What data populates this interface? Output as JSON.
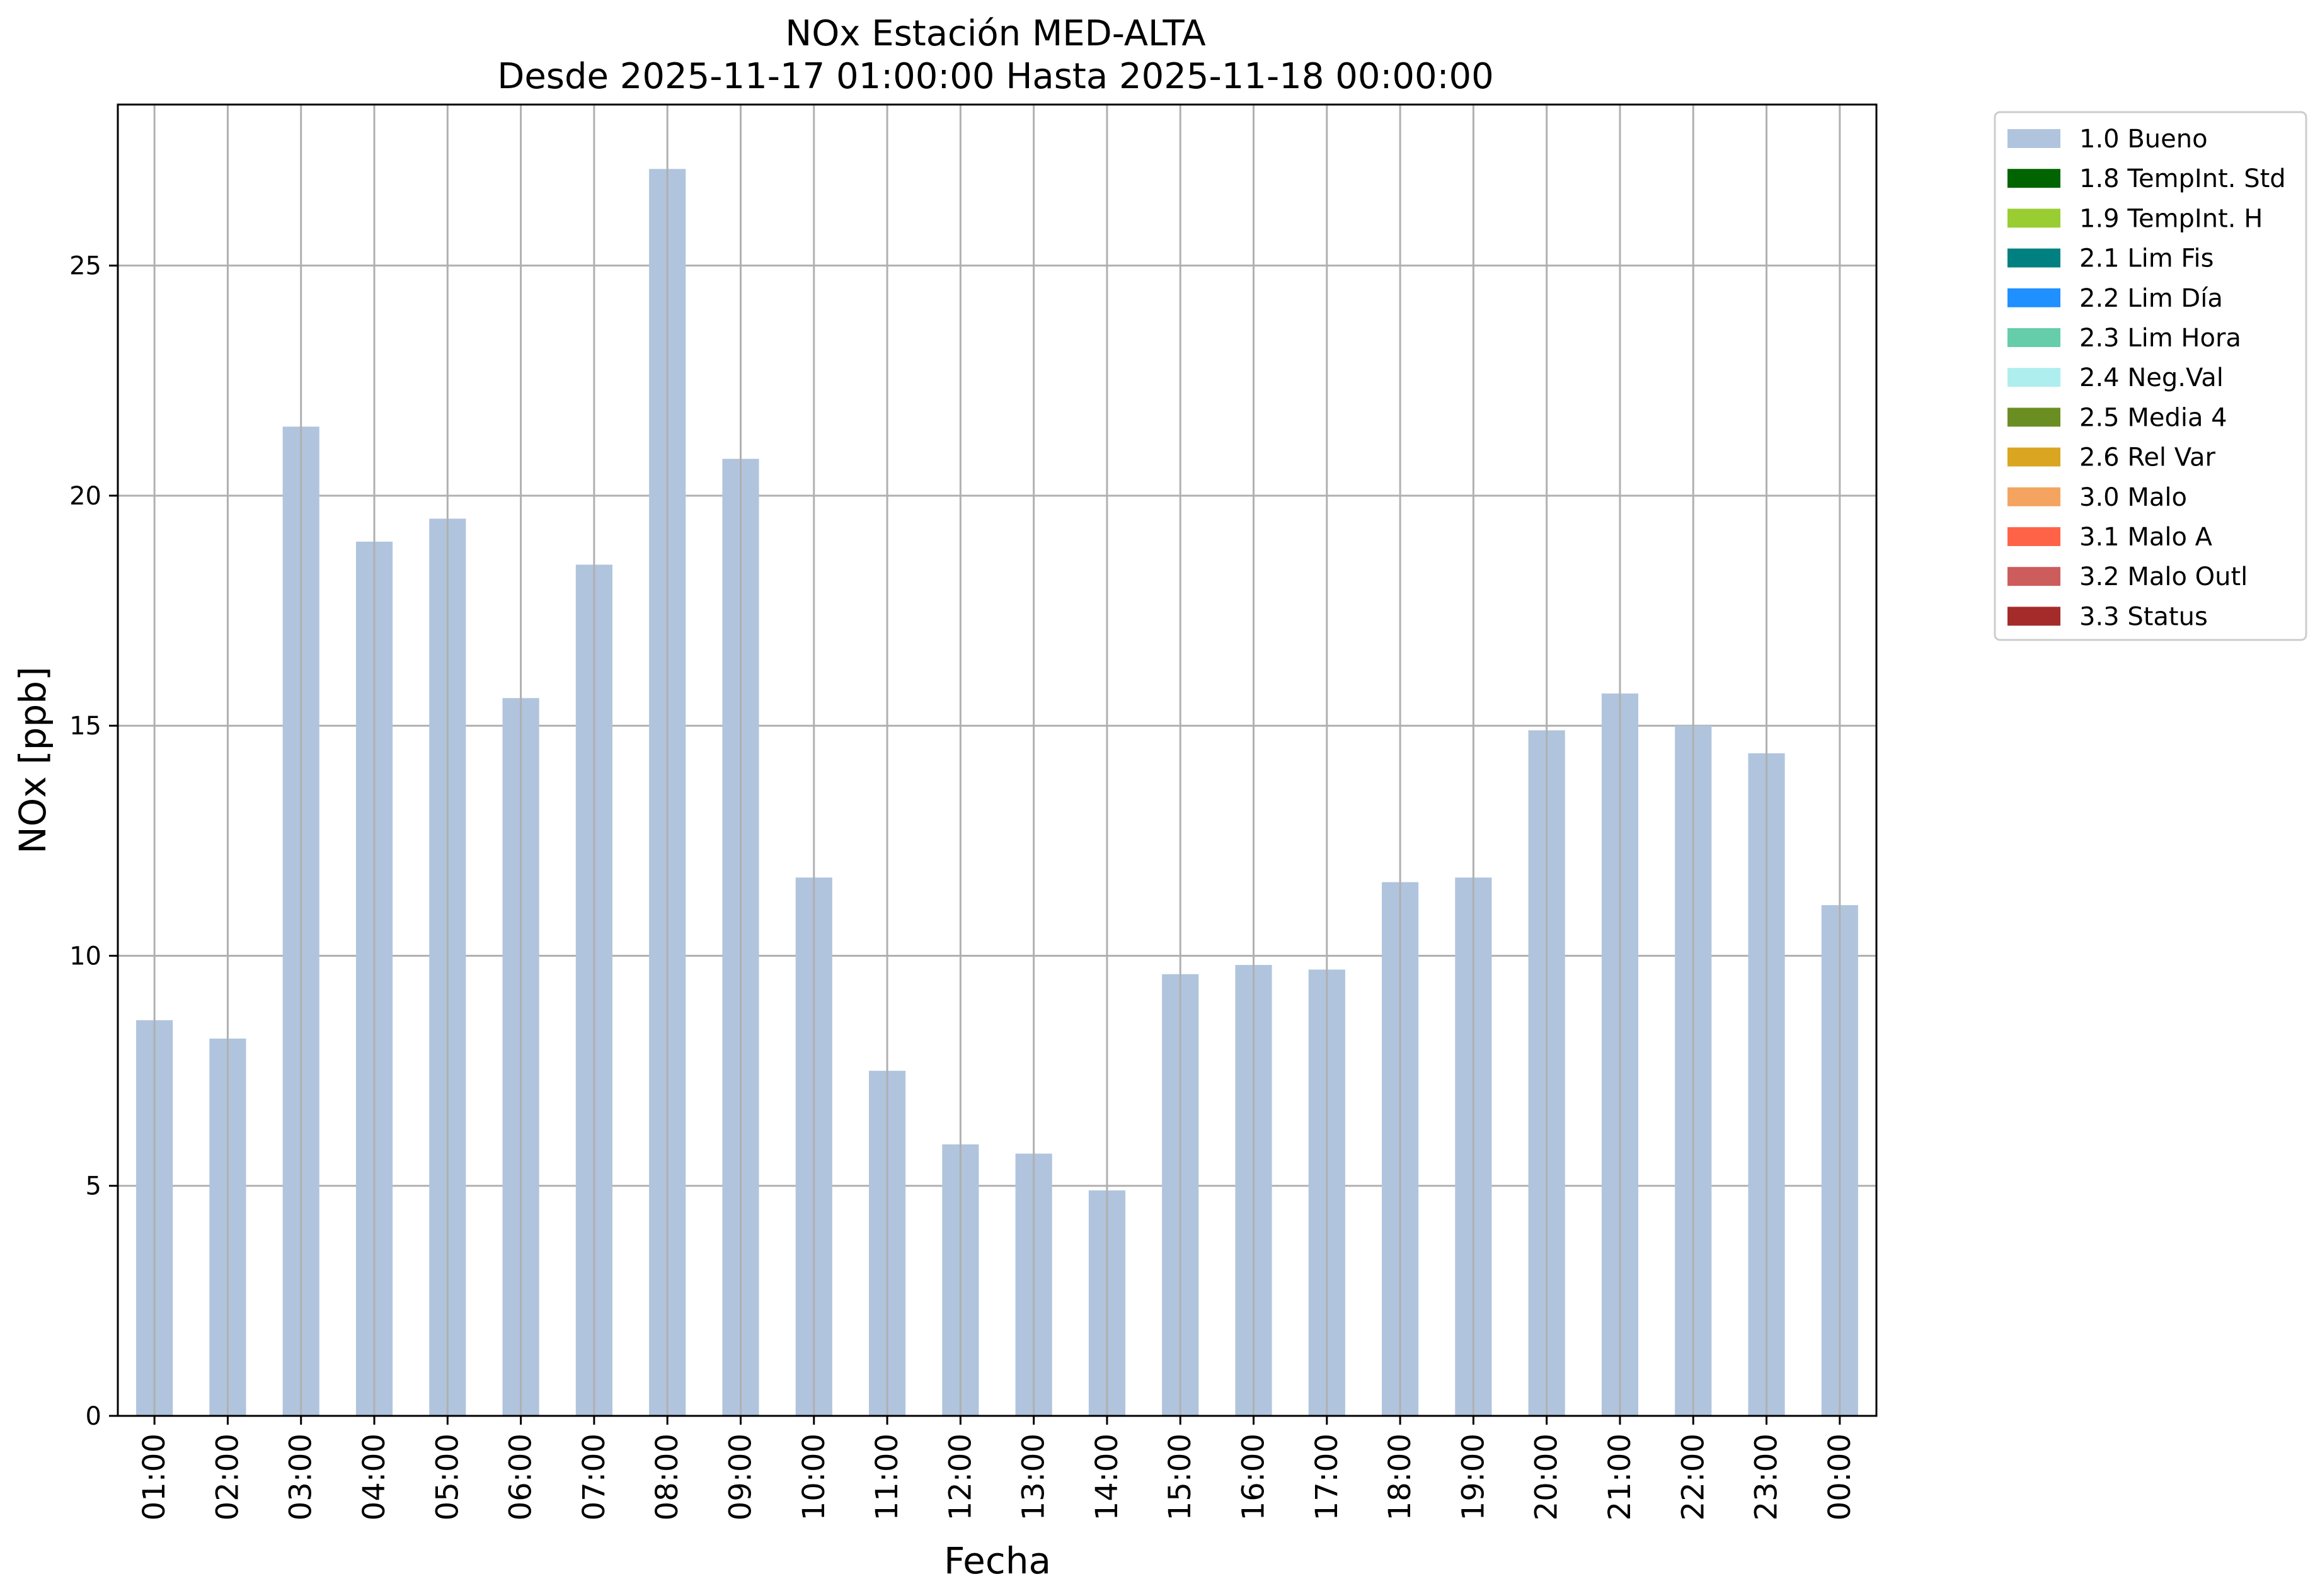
{
  "chart_data": {
    "type": "bar",
    "title": [
      "NOx Estación MED-ALTA",
      "Desde 2025-11-17 01:00:00 Hasta 2025-11-18 00:00:00"
    ],
    "xlabel": "Fecha",
    "ylabel": "NOx [ppb]",
    "ylim": [
      0,
      28.5
    ],
    "yticks": [
      0,
      5,
      10,
      15,
      20,
      25
    ],
    "grid": true,
    "legend_position": "outside-top-right",
    "categories": [
      "01:00",
      "02:00",
      "03:00",
      "04:00",
      "05:00",
      "06:00",
      "07:00",
      "08:00",
      "09:00",
      "10:00",
      "11:00",
      "12:00",
      "13:00",
      "14:00",
      "15:00",
      "16:00",
      "17:00",
      "18:00",
      "19:00",
      "20:00",
      "21:00",
      "22:00",
      "23:00",
      "00:00"
    ],
    "series": [
      {
        "name": "1.0 Bueno",
        "color": "#b0c4de",
        "values": [
          8.6,
          8.2,
          21.5,
          19.0,
          19.5,
          15.6,
          18.5,
          27.1,
          20.8,
          11.7,
          7.5,
          5.9,
          5.7,
          4.9,
          9.6,
          9.8,
          9.7,
          11.6,
          11.7,
          14.9,
          15.7,
          15.0,
          14.4,
          11.1
        ]
      }
    ],
    "legend": [
      {
        "label": "1.0 Bueno",
        "color": "#b0c4de"
      },
      {
        "label": "1.8 TempInt. Std",
        "color": "#006400"
      },
      {
        "label": "1.9 TempInt. H",
        "color": "#9acd32"
      },
      {
        "label": "2.1 Lim Fis",
        "color": "#008080"
      },
      {
        "label": "2.2 Lim Día",
        "color": "#1e90ff"
      },
      {
        "label": "2.3 Lim Hora",
        "color": "#66cdaa"
      },
      {
        "label": "2.4 Neg.Val",
        "color": "#afeeee"
      },
      {
        "label": "2.5 Media 4",
        "color": "#6b8e23"
      },
      {
        "label": "2.6 Rel Var",
        "color": "#daa520"
      },
      {
        "label": "3.0 Malo",
        "color": "#f4a460"
      },
      {
        "label": "3.1 Malo A",
        "color": "#ff6347"
      },
      {
        "label": "3.2 Malo Outl",
        "color": "#cd5c5c"
      },
      {
        "label": "3.3 Status",
        "color": "#a52a2a"
      }
    ]
  }
}
